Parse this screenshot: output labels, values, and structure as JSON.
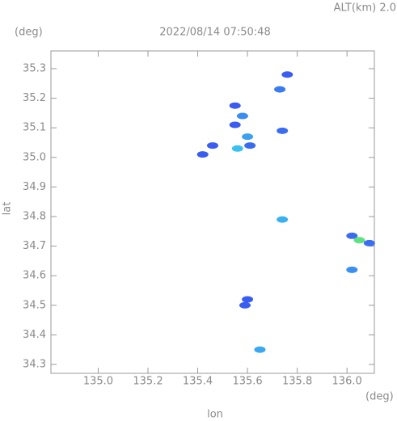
{
  "chart_data": {
    "type": "scatter",
    "title": "2022/08/14 07:50:48",
    "subtitle": "ALT(km) 2.0",
    "y_unit": "(deg)",
    "x_unit": "(deg)",
    "x_label": "lon",
    "y_label": "lat",
    "xlim": [
      134.81,
      136.11
    ],
    "ylim": [
      34.27,
      35.36
    ],
    "xticks": [
      {
        "value": 135,
        "label": "135.0"
      },
      135.2,
      135.4,
      135.6,
      135.8,
      {
        "value": 136,
        "label": "136.0"
      }
    ],
    "yticks": [
      34.3,
      34.4,
      34.5,
      34.6,
      34.7,
      34.8,
      34.9,
      {
        "value": 35,
        "label": "35.0"
      },
      35.1,
      35.2,
      35.3
    ],
    "x": [
      135.76,
      135.73,
      135.55,
      135.58,
      135.55,
      135.6,
      135.56,
      135.61,
      135.74,
      135.46,
      135.42,
      135.74,
      136.02,
      136.05,
      136.09,
      136.02,
      135.6,
      135.59,
      135.65
    ],
    "values": [
      35.28,
      35.23,
      35.175,
      35.14,
      35.11,
      35.07,
      35.03,
      35.04,
      35.09,
      35.04,
      35.01,
      34.79,
      34.735,
      34.72,
      34.71,
      34.62,
      34.52,
      34.5,
      34.35
    ],
    "colors": [
      "#3a5cf0",
      "#3a7cf0",
      "#3a5cf0",
      "#3a8cf0",
      "#3a5cf0",
      "#3aa0f0",
      "#3ac0f0",
      "#3a6cf0",
      "#3a6cf0",
      "#3a5cf0",
      "#3a5cf0",
      "#3ab0f0",
      "#3a6cf0",
      "#60e080",
      "#3a70f0",
      "#3a90f0",
      "#3a5cf0",
      "#3a5cf0",
      "#3aa8f0"
    ]
  }
}
